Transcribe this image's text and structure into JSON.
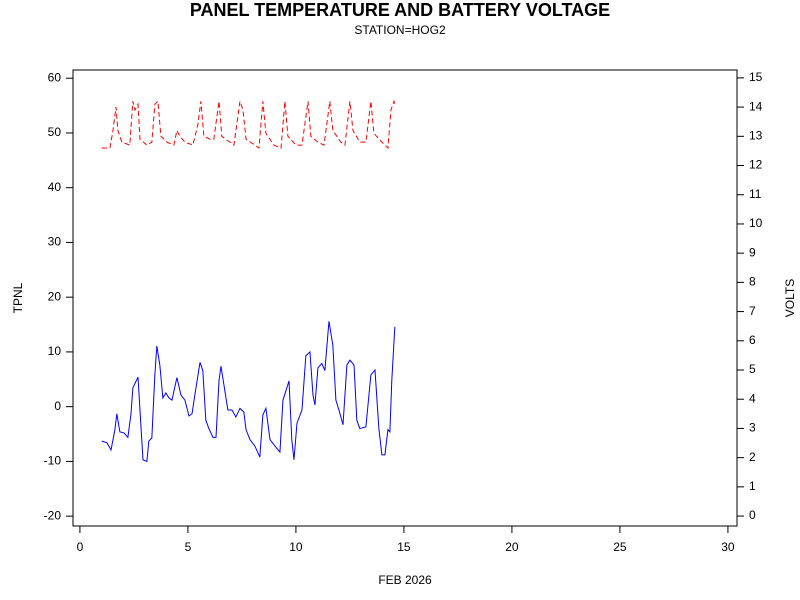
{
  "chart_data": {
    "type": "line",
    "title": "PANEL TEMPERATURE AND BATTERY VOLTAGE",
    "subtitle": "STATION=HOG2",
    "xlabel": "FEB 2026",
    "ylabel": "TPNL",
    "y2label": "VOLTS",
    "xlim": [
      -0.32,
      30.42
    ],
    "xticks": [
      0,
      5,
      10,
      15,
      20,
      25,
      30
    ],
    "ylim": [
      -21.8,
      61.5
    ],
    "yticks": [
      -20,
      -10,
      0,
      10,
      20,
      30,
      40,
      50,
      60
    ],
    "y2lim": [
      -0.34,
      15.27
    ],
    "y2ticks": [
      0,
      1,
      2,
      3,
      4,
      5,
      6,
      7,
      8,
      9,
      10,
      11,
      12,
      13,
      14,
      15
    ],
    "series": [
      {
        "color": "#0000ff",
        "dash": false,
        "axis": "y",
        "x": [
          1.02,
          1.25,
          1.44,
          1.62,
          1.71,
          1.85,
          2.04,
          2.22,
          2.36,
          2.45,
          2.69,
          2.78,
          2.92,
          3.1,
          3.19,
          3.33,
          3.47,
          3.56,
          3.7,
          3.84,
          3.98,
          4.12,
          4.26,
          4.49,
          4.68,
          4.86,
          5.05,
          5.19,
          5.32,
          5.56,
          5.69,
          5.83,
          5.97,
          6.16,
          6.3,
          6.44,
          6.53,
          6.67,
          6.85,
          7.04,
          7.22,
          7.41,
          7.59,
          7.69,
          7.87,
          8.1,
          8.33,
          8.47,
          8.61,
          8.8,
          9.03,
          9.26,
          9.4,
          9.68,
          9.81,
          9.91,
          10.05,
          10.28,
          10.46,
          10.65,
          10.79,
          10.88,
          11.02,
          11.2,
          11.34,
          11.53,
          11.71,
          11.85,
          11.99,
          12.18,
          12.36,
          12.5,
          12.69,
          12.82,
          12.96,
          13.24,
          13.47,
          13.66,
          13.84,
          13.98,
          14.12,
          14.26,
          14.35,
          14.44,
          14.58
        ],
        "values": [
          -6.3,
          -6.6,
          -7.9,
          -4.2,
          -1.3,
          -4.6,
          -4.8,
          -5.6,
          -1.5,
          3.4,
          5.4,
          -0.6,
          -9.7,
          -10.0,
          -6.3,
          -5.7,
          5.8,
          11.1,
          7.6,
          1.6,
          2.5,
          1.6,
          1.2,
          5.3,
          2.1,
          1.2,
          -1.7,
          -1.3,
          2.1,
          8.1,
          6.6,
          -2.5,
          -4.0,
          -5.6,
          -5.6,
          4.8,
          7.4,
          3.9,
          -0.6,
          -0.6,
          -1.9,
          -0.3,
          -1.0,
          -4.2,
          -6.0,
          -7.2,
          -9.2,
          -1.5,
          -0.3,
          -6.0,
          -7.2,
          -8.3,
          1.2,
          4.7,
          -6.0,
          -9.7,
          -3.0,
          -0.6,
          9.3,
          10.0,
          2.1,
          0.3,
          7.1,
          7.9,
          6.6,
          15.6,
          11.2,
          1.2,
          -0.6,
          -3.3,
          7.6,
          8.5,
          7.6,
          -2.5,
          -4.0,
          -3.7,
          5.8,
          6.7,
          -4.0,
          -8.8,
          -8.8,
          -4.2,
          -4.6,
          4.9,
          14.6
        ]
      },
      {
        "color": "#ff0000",
        "dash": true,
        "axis": "y2",
        "x": [
          1.02,
          1.39,
          1.53,
          1.67,
          1.76,
          1.94,
          2.31,
          2.45,
          2.55,
          2.69,
          2.78,
          3.1,
          3.33,
          3.47,
          3.61,
          3.75,
          4.03,
          4.35,
          4.49,
          4.63,
          4.86,
          5.23,
          5.46,
          5.6,
          5.74,
          6.02,
          6.2,
          6.44,
          6.57,
          6.94,
          7.13,
          7.41,
          7.55,
          7.69,
          8.1,
          8.29,
          8.47,
          8.61,
          8.98,
          9.31,
          9.49,
          9.63,
          10.0,
          10.28,
          10.56,
          10.69,
          11.02,
          11.3,
          11.57,
          11.71,
          12.08,
          12.27,
          12.5,
          12.64,
          12.96,
          13.24,
          13.47,
          13.61,
          13.98,
          14.26,
          14.4,
          14.54,
          14.58
        ],
        "values": [
          12.6,
          12.6,
          13.2,
          14.0,
          13.2,
          12.8,
          12.7,
          14.2,
          13.9,
          14.1,
          12.9,
          12.7,
          12.8,
          14.1,
          14.2,
          13.0,
          12.8,
          12.7,
          13.2,
          13.0,
          12.8,
          12.7,
          13.4,
          14.2,
          13.0,
          12.9,
          12.9,
          14.2,
          13.0,
          12.8,
          12.7,
          14.2,
          13.9,
          12.9,
          12.7,
          12.6,
          14.2,
          13.1,
          12.7,
          12.6,
          14.2,
          13.0,
          12.7,
          12.7,
          14.2,
          13.0,
          12.8,
          12.7,
          14.2,
          13.2,
          12.8,
          12.7,
          14.2,
          13.2,
          12.8,
          12.8,
          14.2,
          13.1,
          12.8,
          12.6,
          13.9,
          14.2,
          14.1
        ]
      }
    ]
  }
}
